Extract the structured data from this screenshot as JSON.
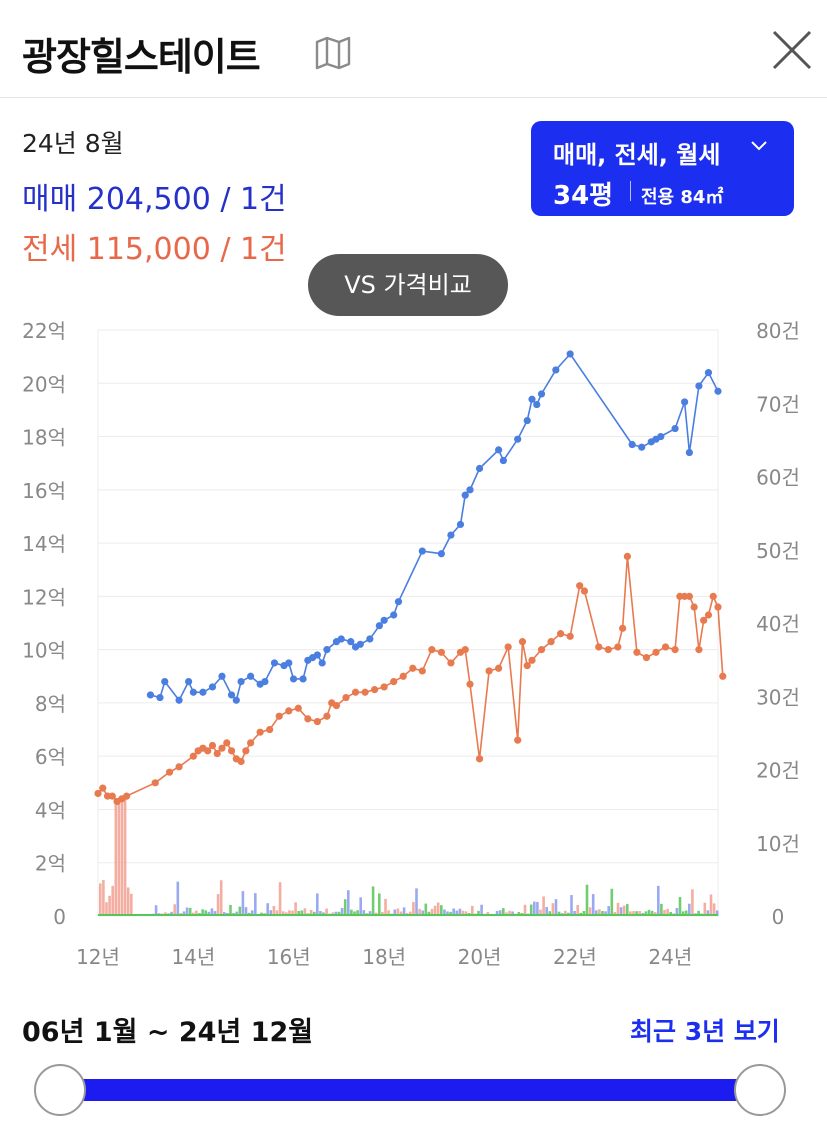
{
  "header": {
    "title": "광장힐스테이트",
    "map_icon": "map-icon",
    "close_icon": "close-icon"
  },
  "summary": {
    "period": "24년 8월",
    "sale": "매매 204,500 / 1건",
    "jeonse": "전세 115,000 / 1건"
  },
  "filter": {
    "types": "매매, 전세, 월세",
    "size": "34평",
    "area": "전용 84㎡"
  },
  "vs_button": "VS 가격비교",
  "colors": {
    "accent": "#1c2ef0",
    "sale": "#4a7ee0",
    "jeonse": "#e87a50",
    "volume_sale": "#8a9aef",
    "volume_jeonse": "#f2a090",
    "volume_rent": "#59c459"
  },
  "chart_data": {
    "type": "line",
    "x_ticks": [
      "12년",
      "14년",
      "16년",
      "18년",
      "20년",
      "22년",
      "24년"
    ],
    "y_left_ticks": [
      "0",
      "2억",
      "4억",
      "6억",
      "8억",
      "10억",
      "12억",
      "14억",
      "16억",
      "18억",
      "20억",
      "22억"
    ],
    "y_right_ticks": [
      "0",
      "10건",
      "20건",
      "30건",
      "40건",
      "50건",
      "60건",
      "70건",
      "80건"
    ],
    "xlim": [
      2012.0,
      2025.0
    ],
    "ylim_left": [
      0,
      22
    ],
    "ylim_right": [
      0,
      80
    ],
    "grid": true,
    "series": [
      {
        "color": "#4a7ee0",
        "points": [
          [
            2013.1,
            8.3
          ],
          [
            2013.3,
            8.2
          ],
          [
            2013.4,
            8.8
          ],
          [
            2013.7,
            8.1
          ],
          [
            2013.9,
            8.8
          ],
          [
            2014.0,
            8.4
          ],
          [
            2014.2,
            8.4
          ],
          [
            2014.4,
            8.6
          ],
          [
            2014.6,
            9.0
          ],
          [
            2014.8,
            8.3
          ],
          [
            2014.9,
            8.1
          ],
          [
            2015.0,
            8.8
          ],
          [
            2015.2,
            9.0
          ],
          [
            2015.4,
            8.7
          ],
          [
            2015.5,
            8.8
          ],
          [
            2015.7,
            9.5
          ],
          [
            2015.9,
            9.4
          ],
          [
            2016.0,
            9.5
          ],
          [
            2016.1,
            8.9
          ],
          [
            2016.3,
            8.9
          ],
          [
            2016.4,
            9.6
          ],
          [
            2016.5,
            9.7
          ],
          [
            2016.6,
            9.8
          ],
          [
            2016.7,
            9.5
          ],
          [
            2016.8,
            10.0
          ],
          [
            2017.0,
            10.3
          ],
          [
            2017.1,
            10.4
          ],
          [
            2017.3,
            10.3
          ],
          [
            2017.4,
            10.1
          ],
          [
            2017.5,
            10.2
          ],
          [
            2017.7,
            10.4
          ],
          [
            2017.9,
            10.9
          ],
          [
            2018.0,
            11.1
          ],
          [
            2018.2,
            11.3
          ],
          [
            2018.3,
            11.8
          ],
          [
            2018.8,
            13.7
          ],
          [
            2019.2,
            13.6
          ],
          [
            2019.4,
            14.3
          ],
          [
            2019.6,
            14.7
          ],
          [
            2019.7,
            15.8
          ],
          [
            2019.8,
            16.0
          ],
          [
            2020.0,
            16.8
          ],
          [
            2020.4,
            17.5
          ],
          [
            2020.5,
            17.1
          ],
          [
            2020.8,
            17.9
          ],
          [
            2021.0,
            18.6
          ],
          [
            2021.1,
            19.4
          ],
          [
            2021.2,
            19.2
          ],
          [
            2021.3,
            19.6
          ],
          [
            2021.6,
            20.5
          ],
          [
            2021.9,
            21.1
          ],
          [
            2023.2,
            17.7
          ],
          [
            2023.4,
            17.6
          ],
          [
            2023.6,
            17.8
          ],
          [
            2023.7,
            17.9
          ],
          [
            2023.8,
            18.0
          ],
          [
            2024.1,
            18.3
          ],
          [
            2024.3,
            19.3
          ],
          [
            2024.4,
            17.4
          ],
          [
            2024.6,
            19.9
          ],
          [
            2024.8,
            20.4
          ],
          [
            2025.0,
            19.7
          ]
        ]
      },
      {
        "color": "#e87a50",
        "points": [
          [
            2012.0,
            4.6
          ],
          [
            2012.1,
            4.8
          ],
          [
            2012.2,
            4.5
          ],
          [
            2012.3,
            4.5
          ],
          [
            2012.4,
            4.3
          ],
          [
            2012.5,
            4.4
          ],
          [
            2012.6,
            4.5
          ],
          [
            2013.2,
            5.0
          ],
          [
            2013.5,
            5.4
          ],
          [
            2013.7,
            5.6
          ],
          [
            2014.0,
            6.0
          ],
          [
            2014.1,
            6.2
          ],
          [
            2014.2,
            6.3
          ],
          [
            2014.3,
            6.2
          ],
          [
            2014.4,
            6.4
          ],
          [
            2014.5,
            6.1
          ],
          [
            2014.6,
            6.3
          ],
          [
            2014.7,
            6.5
          ],
          [
            2014.8,
            6.2
          ],
          [
            2014.9,
            5.9
          ],
          [
            2015.0,
            5.8
          ],
          [
            2015.1,
            6.2
          ],
          [
            2015.2,
            6.5
          ],
          [
            2015.4,
            6.9
          ],
          [
            2015.6,
            7.0
          ],
          [
            2015.8,
            7.5
          ],
          [
            2016.0,
            7.7
          ],
          [
            2016.2,
            7.8
          ],
          [
            2016.4,
            7.4
          ],
          [
            2016.6,
            7.3
          ],
          [
            2016.8,
            7.5
          ],
          [
            2016.9,
            8.0
          ],
          [
            2017.0,
            7.9
          ],
          [
            2017.2,
            8.2
          ],
          [
            2017.4,
            8.4
          ],
          [
            2017.6,
            8.4
          ],
          [
            2017.8,
            8.5
          ],
          [
            2018.0,
            8.6
          ],
          [
            2018.2,
            8.8
          ],
          [
            2018.4,
            9.0
          ],
          [
            2018.6,
            9.3
          ],
          [
            2018.8,
            9.2
          ],
          [
            2019.0,
            10.0
          ],
          [
            2019.2,
            9.9
          ],
          [
            2019.4,
            9.5
          ],
          [
            2019.6,
            9.9
          ],
          [
            2019.7,
            10.0
          ],
          [
            2019.8,
            8.7
          ],
          [
            2020.0,
            5.9
          ],
          [
            2020.2,
            9.2
          ],
          [
            2020.4,
            9.3
          ],
          [
            2020.6,
            10.1
          ],
          [
            2020.8,
            6.6
          ],
          [
            2020.9,
            10.3
          ],
          [
            2021.0,
            9.4
          ],
          [
            2021.1,
            9.6
          ],
          [
            2021.3,
            10.0
          ],
          [
            2021.5,
            10.3
          ],
          [
            2021.7,
            10.6
          ],
          [
            2021.9,
            10.5
          ],
          [
            2022.1,
            12.4
          ],
          [
            2022.2,
            12.2
          ],
          [
            2022.5,
            10.1
          ],
          [
            2022.7,
            10.0
          ],
          [
            2022.9,
            10.1
          ],
          [
            2023.0,
            10.8
          ],
          [
            2023.1,
            13.5
          ],
          [
            2023.3,
            9.9
          ],
          [
            2023.5,
            9.7
          ],
          [
            2023.7,
            9.9
          ],
          [
            2023.9,
            10.1
          ],
          [
            2024.1,
            10.0
          ],
          [
            2024.2,
            12.0
          ],
          [
            2024.3,
            12.0
          ],
          [
            2024.4,
            12.0
          ],
          [
            2024.5,
            11.6
          ],
          [
            2024.6,
            10.0
          ],
          [
            2024.7,
            11.1
          ],
          [
            2024.8,
            11.3
          ],
          [
            2024.9,
            12.0
          ],
          [
            2025.0,
            11.6
          ],
          [
            2025.1,
            9.0
          ]
        ]
      }
    ]
  },
  "range": {
    "label": "06년 1월 ~ 24년 12월",
    "recent": "최근 3년 보기"
  }
}
